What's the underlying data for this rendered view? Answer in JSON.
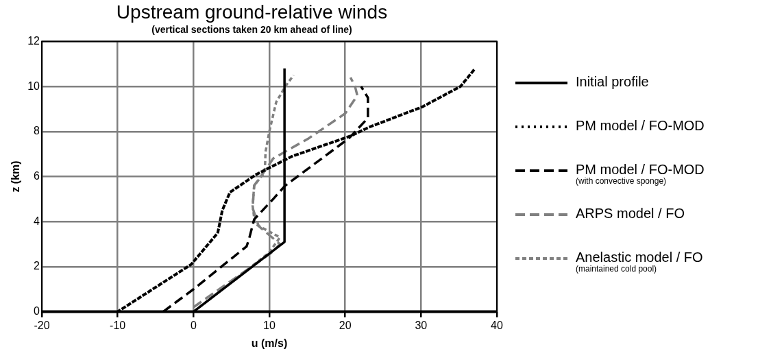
{
  "chart_data": {
    "type": "line",
    "title": "Upstream ground-relative winds",
    "subtitle": "(vertical sections taken 20 km ahead of line)",
    "xlabel": "u (m/s)",
    "ylabel": "z (km)",
    "xlim": [
      -20,
      40
    ],
    "xticks": [
      -20,
      -10,
      0,
      10,
      20,
      30,
      40
    ],
    "ylim": [
      0,
      12
    ],
    "yticks": [
      0,
      2,
      4,
      6,
      8,
      10,
      12
    ],
    "grid": true,
    "legend": "right",
    "marker": "none",
    "series": [
      {
        "name": "Initial profile",
        "color": "#000000",
        "line_style": "solid",
        "x": [
          0,
          12,
          12
        ],
        "values": [
          0,
          3.1,
          10.8
        ]
      },
      {
        "name": "PM model / FO-MOD",
        "color": "#000000",
        "line_style": "dotted",
        "x": [
          -10,
          -0.3,
          3.2,
          3.8,
          4.8,
          8.3,
          13,
          20.7,
          23.2,
          30.2,
          35.2,
          36.9
        ],
        "values": [
          0,
          2.1,
          3.5,
          4.5,
          5.3,
          6.1,
          6.9,
          7.8,
          8.2,
          9.1,
          10,
          10.7
        ]
      },
      {
        "name": "PM model / FO-MOD\n(with convective sponge)",
        "color": "#000000",
        "line_style": "dashed",
        "x": [
          -4,
          0,
          7,
          7.3,
          8,
          10.5,
          12.1,
          20.5,
          23,
          23,
          22.1
        ],
        "values": [
          0,
          1,
          2.9,
          3.2,
          4.1,
          5,
          5.6,
          7.7,
          8.6,
          9.5,
          10
        ]
      },
      {
        "name": "ARPS model / FO",
        "color": "#808080",
        "line_style": "dashed",
        "x": [
          0,
          10.2,
          11.4,
          8.6,
          7.8,
          8,
          9.5,
          10.5,
          15.2,
          20,
          21.6,
          21.3,
          20.7
        ],
        "values": [
          0.2,
          2.6,
          3,
          3.8,
          4.6,
          5.6,
          6.3,
          6.8,
          7.7,
          8.8,
          9.6,
          10,
          10.4
        ]
      },
      {
        "name": "Anelastic model / FO\n(maintained cold pool)",
        "color": "#808080",
        "line_style": "dashed",
        "x": [
          0,
          1.9,
          9.9,
          11.4,
          8.1,
          7.8,
          8,
          9.4,
          9.5,
          10,
          10.9,
          12.1,
          13.2
        ],
        "values": [
          0,
          0.5,
          2.6,
          3.3,
          3.9,
          4.7,
          5.6,
          6.2,
          7.1,
          8,
          9.3,
          10,
          10.5
        ]
      }
    ]
  }
}
